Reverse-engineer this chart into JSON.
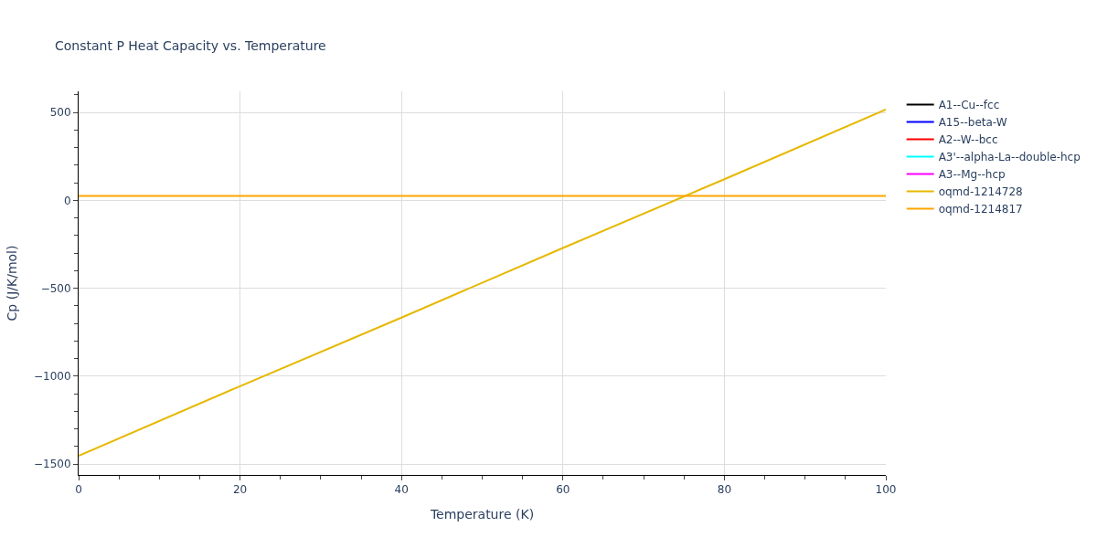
{
  "chart_data": {
    "type": "line",
    "title": "Constant P Heat Capacity vs. Temperature",
    "xlabel": "Temperature (K)",
    "ylabel": "Cp (J/K/mol)",
    "x": [
      0,
      20,
      40,
      60,
      80,
      100
    ],
    "series": [
      {
        "name": "A1--Cu--fcc",
        "color": "#000000",
        "values": [
          null,
          null,
          null,
          null,
          null,
          null
        ]
      },
      {
        "name": "A15--beta-W",
        "color": "#0000ff",
        "values": [
          null,
          null,
          null,
          null,
          null,
          null
        ]
      },
      {
        "name": "A2--W--bcc",
        "color": "#ff0000",
        "values": [
          null,
          null,
          null,
          null,
          null,
          null
        ]
      },
      {
        "name": "A3'--alpha-La--double-hcp",
        "color": "#00ffff",
        "values": [
          null,
          null,
          null,
          null,
          null,
          null
        ]
      },
      {
        "name": "A3--Mg--hcp",
        "color": "#ff00ff",
        "values": [
          null,
          null,
          null,
          null,
          null,
          null
        ]
      },
      {
        "name": "oqmd-1214728",
        "color": "#e6b800",
        "values": [
          -1453,
          -1057,
          -667,
          -271,
          120,
          516
        ]
      },
      {
        "name": "oqmd-1214817",
        "color": "#ffa500",
        "values": [
          25,
          25,
          25,
          25,
          25,
          25
        ]
      }
    ],
    "xlim": [
      0,
      100
    ],
    "xticks": [
      0,
      20,
      40,
      60,
      80,
      100
    ],
    "ylim": [
      -1562,
      620
    ],
    "yticks": [
      -1500,
      -1000,
      -500,
      0,
      500
    ],
    "grid": true,
    "legend": "top right",
    "line_style": "solid",
    "marker": "none"
  }
}
